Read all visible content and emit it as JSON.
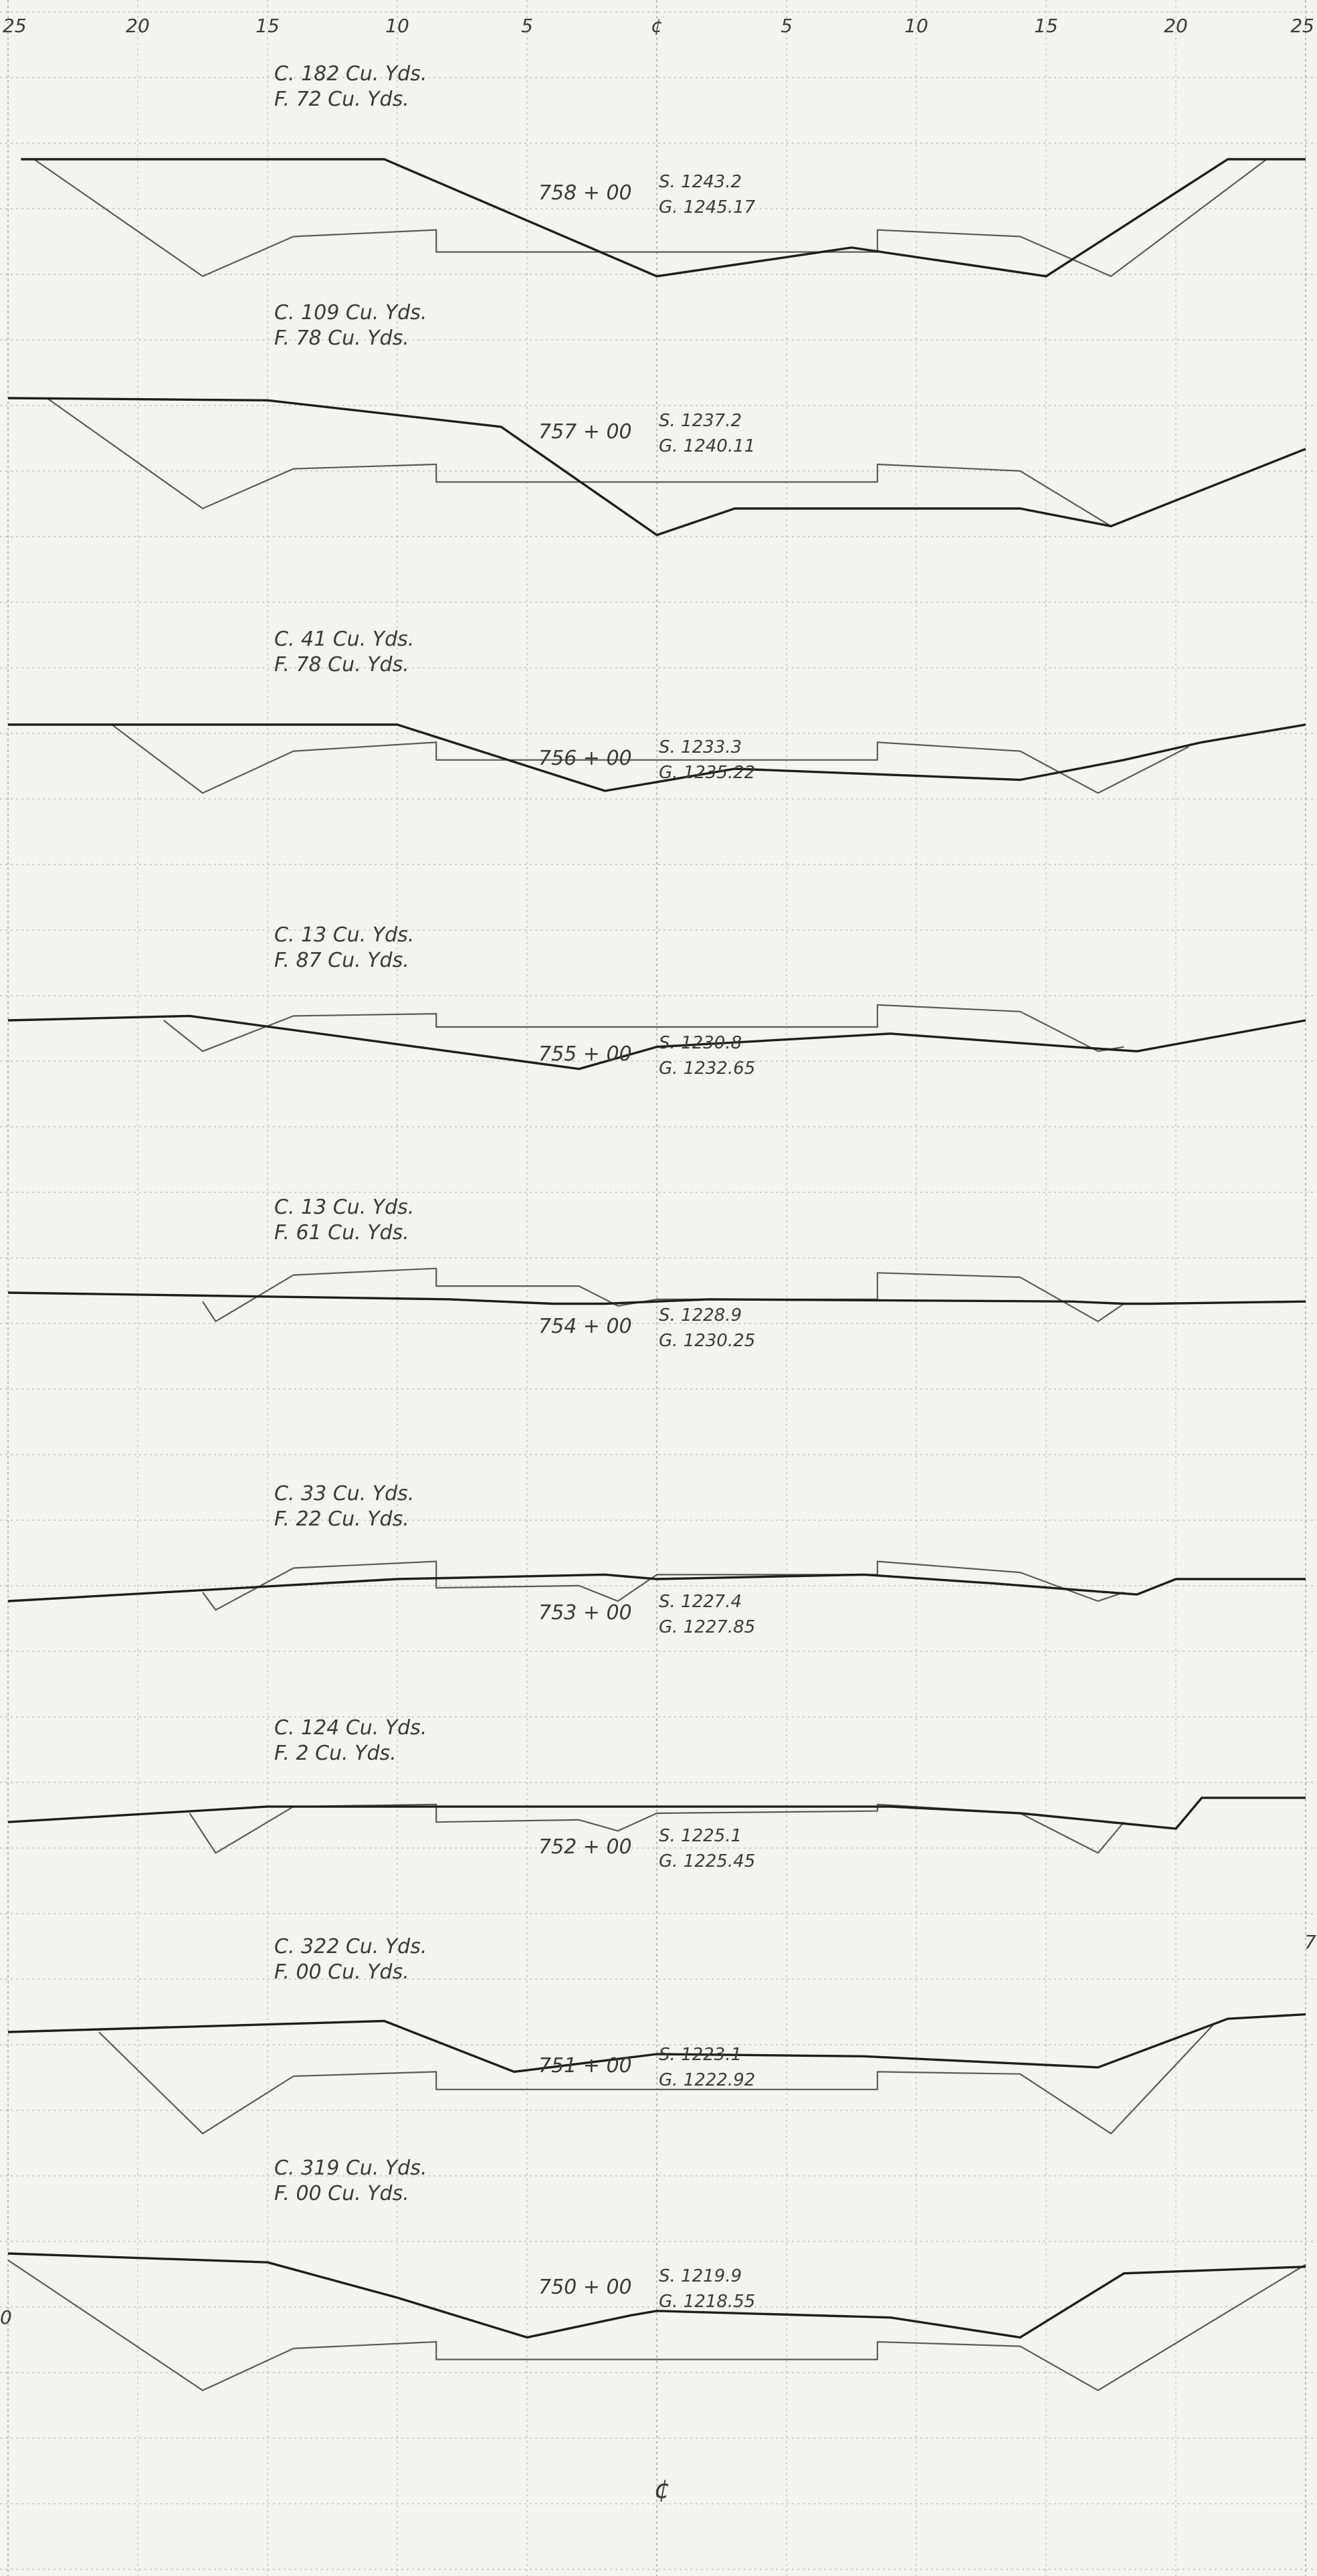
{
  "axis": {
    "top_labels": [
      "25",
      "20",
      "15",
      "10",
      "5",
      "¢",
      "5",
      "10",
      "15",
      "20",
      "25"
    ],
    "bottom_label": "¢",
    "edge_marks": [
      "7",
      "0"
    ]
  },
  "sections": [
    {
      "station": "758 + 00",
      "cut": "C.  182  Cu. Yds.",
      "fill": "F.  72  Cu. Yds.",
      "subgrade": "S.  1243.2",
      "grade": "G.  1245.17",
      "ground": [
        [
          -24.5,
          0
        ],
        [
          -10.5,
          0
        ],
        [
          0,
          -5.3
        ],
        [
          7.5,
          -4.0
        ],
        [
          15,
          -5.3
        ],
        [
          22,
          0
        ],
        [
          25,
          0
        ]
      ],
      "template": [
        [
          -24,
          0
        ],
        [
          -17.5,
          -5.3
        ],
        [
          -14,
          -3.5
        ],
        [
          -8.5,
          -3.2
        ],
        [
          -8.5,
          -4.2
        ],
        [
          8.5,
          -4.2
        ],
        [
          8.5,
          -3.2
        ],
        [
          14,
          -3.5
        ],
        [
          17.5,
          -5.3
        ],
        [
          23.5,
          0
        ]
      ]
    },
    {
      "station": "757 + 00",
      "cut": "C.  109  Cu. Yds.",
      "fill": "F.  78  Cu. Yds.",
      "subgrade": "S.  1237.2",
      "grade": "G.  1240.11",
      "ground": [
        [
          -25,
          0
        ],
        [
          -15,
          -0.1
        ],
        [
          -6,
          -1.3
        ],
        [
          0,
          -6.2
        ],
        [
          3,
          -5.0
        ],
        [
          14,
          -5.0
        ],
        [
          17.5,
          -5.8
        ],
        [
          25,
          -2.3
        ]
      ],
      "template": [
        [
          -23.5,
          0
        ],
        [
          -17.5,
          -5.0
        ],
        [
          -14,
          -3.2
        ],
        [
          -8.5,
          -3.0
        ],
        [
          -8.5,
          -3.8
        ],
        [
          8.5,
          -3.8
        ],
        [
          8.5,
          -3.0
        ],
        [
          14,
          -3.3
        ],
        [
          17.5,
          -5.8
        ]
      ]
    },
    {
      "station": "756 + 00",
      "cut": "C.  41  Cu. Yds.",
      "fill": "F.  78  Cu. Yds.",
      "subgrade": "S.  1233.3",
      "grade": "G.  1235.22",
      "ground": [
        [
          -25,
          0
        ],
        [
          -10,
          0
        ],
        [
          -2,
          -3.0
        ],
        [
          3,
          -2.0
        ],
        [
          14,
          -2.5
        ],
        [
          18,
          -1.6
        ],
        [
          21,
          -0.8
        ],
        [
          25,
          0
        ]
      ],
      "template": [
        [
          -21,
          0
        ],
        [
          -17.5,
          -3.1
        ],
        [
          -14,
          -1.2
        ],
        [
          -8.5,
          -0.8
        ],
        [
          -8.5,
          -1.6
        ],
        [
          8.5,
          -1.6
        ],
        [
          8.5,
          -0.8
        ],
        [
          14,
          -1.2
        ],
        [
          17,
          -3.1
        ],
        [
          20.5,
          -1.0
        ]
      ]
    },
    {
      "station": "755 + 00",
      "cut": "C.  13  Cu. Yds.",
      "fill": "F.  87  Cu. Yds.",
      "subgrade": "S.  1230.8",
      "grade": "G.  1232.65",
      "ground": [
        [
          -25,
          0
        ],
        [
          -18,
          0.2
        ],
        [
          -3,
          -2.2
        ],
        [
          0,
          -1.2
        ],
        [
          9,
          -0.6
        ],
        [
          16,
          -1.2
        ],
        [
          18.5,
          -1.4
        ],
        [
          25,
          0
        ]
      ],
      "template": [
        [
          -19,
          0
        ],
        [
          -17.5,
          -1.4
        ],
        [
          -14,
          0.2
        ],
        [
          -8.5,
          0.3
        ],
        [
          -8.5,
          -0.3
        ],
        [
          8.5,
          -0.3
        ],
        [
          8.5,
          0.7
        ],
        [
          14,
          0.4
        ],
        [
          17,
          -1.4
        ],
        [
          18,
          -1.2
        ]
      ]
    },
    {
      "station": "754 + 00",
      "cut": "C.  13  Cu. Yds.",
      "fill": "F.  61  Cu. Yds.",
      "subgrade": "S.  1228.9",
      "grade": "G.  1230.25",
      "ground": [
        [
          -25,
          0
        ],
        [
          -8,
          -0.3
        ],
        [
          -4,
          -0.5
        ],
        [
          -2,
          -0.5
        ],
        [
          2,
          -0.3
        ],
        [
          16,
          -0.4
        ],
        [
          18,
          -0.5
        ],
        [
          19,
          -0.5
        ],
        [
          25,
          -0.4
        ]
      ],
      "template": [
        [
          -17.5,
          -0.4
        ],
        [
          -17,
          -1.3
        ],
        [
          -14,
          0.8
        ],
        [
          -8.5,
          1.1
        ],
        [
          -8.5,
          0.3
        ],
        [
          -3,
          0.3
        ],
        [
          -1.5,
          -0.6
        ],
        [
          0,
          -0.3
        ],
        [
          8.5,
          -0.3
        ],
        [
          8.5,
          0.9
        ],
        [
          14,
          0.7
        ],
        [
          17,
          -1.3
        ],
        [
          18,
          -0.5
        ]
      ]
    },
    {
      "station": "753 + 00",
      "cut": "C.  33  Cu. Yds.",
      "fill": "F.  22  Cu. Yds.",
      "subgrade": "S.  1227.4",
      "grade": "G.  1227.85",
      "ground": [
        [
          -25,
          -1.0
        ],
        [
          -19,
          -0.6
        ],
        [
          -10,
          0
        ],
        [
          -2,
          0.2
        ],
        [
          0,
          0
        ],
        [
          8,
          0.2
        ],
        [
          13,
          -0.2
        ],
        [
          18.5,
          -0.7
        ],
        [
          20,
          0
        ],
        [
          25,
          0
        ]
      ],
      "template": [
        [
          -17.5,
          -0.6
        ],
        [
          -17,
          -1.4
        ],
        [
          -14,
          0.5
        ],
        [
          -8.5,
          0.8
        ],
        [
          -8.5,
          -0.4
        ],
        [
          -3,
          -0.3
        ],
        [
          -1.5,
          -1.0
        ],
        [
          0,
          0.2
        ],
        [
          8.5,
          0.2
        ],
        [
          8.5,
          0.8
        ],
        [
          14,
          0.3
        ],
        [
          17,
          -1.0
        ],
        [
          18,
          -0.6
        ]
      ]
    },
    {
      "station": "752 + 00",
      "cut": "C.  124  Cu. Yds.",
      "fill": "F.  2  Cu. Yds.",
      "subgrade": "S.  1225.1",
      "grade": "G.  1225.45",
      "ground": [
        [
          -25,
          -0.4
        ],
        [
          -15,
          0.3
        ],
        [
          -8,
          0.3
        ],
        [
          -1,
          0.3
        ],
        [
          0,
          0.3
        ],
        [
          9,
          0.3
        ],
        [
          14,
          0
        ],
        [
          20,
          -0.7
        ],
        [
          21,
          0.7
        ],
        [
          25,
          0.7
        ]
      ],
      "template": [
        [
          -18,
          0
        ],
        [
          -17,
          -1.8
        ],
        [
          -14,
          0.3
        ],
        [
          -8.5,
          0.4
        ],
        [
          -8.5,
          -0.4
        ],
        [
          -3,
          -0.3
        ],
        [
          -1.5,
          -0.8
        ],
        [
          0,
          0
        ],
        [
          8.5,
          0.1
        ],
        [
          8.5,
          0.4
        ],
        [
          14,
          0
        ],
        [
          17,
          -1.8
        ],
        [
          18,
          -0.4
        ]
      ]
    },
    {
      "station": "751 + 00",
      "cut": "C.  322  Cu. Yds.",
      "fill": "F.  00  Cu. Yds.",
      "subgrade": "S.  1223.1",
      "grade": "G.  1222.92",
      "ground": [
        [
          -25,
          0
        ],
        [
          -10.5,
          0.5
        ],
        [
          -5.5,
          -1.8
        ],
        [
          0,
          -1.0
        ],
        [
          8,
          -1.1
        ],
        [
          17,
          -1.6
        ],
        [
          22,
          0.6
        ],
        [
          25,
          0.8
        ]
      ],
      "template": [
        [
          -21.5,
          0
        ],
        [
          -17.5,
          -4.6
        ],
        [
          -14,
          -2.0
        ],
        [
          -8.5,
          -1.8
        ],
        [
          -8.5,
          -2.6
        ],
        [
          8.5,
          -2.6
        ],
        [
          8.5,
          -1.8
        ],
        [
          14,
          -1.9
        ],
        [
          17.5,
          -4.6
        ],
        [
          21.5,
          0.4
        ]
      ]
    },
    {
      "station": "750 + 00",
      "cut": "C.  319  Cu. Yds.",
      "fill": "F.  00  Cu. Yds.",
      "subgrade": "S.  1219.9",
      "grade": "G.  1218.55",
      "ground": [
        [
          -25,
          0
        ],
        [
          -15,
          -0.4
        ],
        [
          -10,
          -2.0
        ],
        [
          -5,
          -3.8
        ],
        [
          -1,
          -2.8
        ],
        [
          0,
          -2.6
        ],
        [
          9,
          -2.9
        ],
        [
          14,
          -3.8
        ],
        [
          18,
          -0.9
        ],
        [
          25,
          -0.6
        ]
      ],
      "template": [
        [
          -25,
          -0.3
        ],
        [
          -17.5,
          -6.2
        ],
        [
          -14,
          -4.3
        ],
        [
          -8.5,
          -4.0
        ],
        [
          -8.5,
          -4.8
        ],
        [
          8.5,
          -4.8
        ],
        [
          8.5,
          -4.0
        ],
        [
          14,
          -4.2
        ],
        [
          17,
          -6.2
        ],
        [
          25,
          -0.5
        ]
      ]
    }
  ]
}
